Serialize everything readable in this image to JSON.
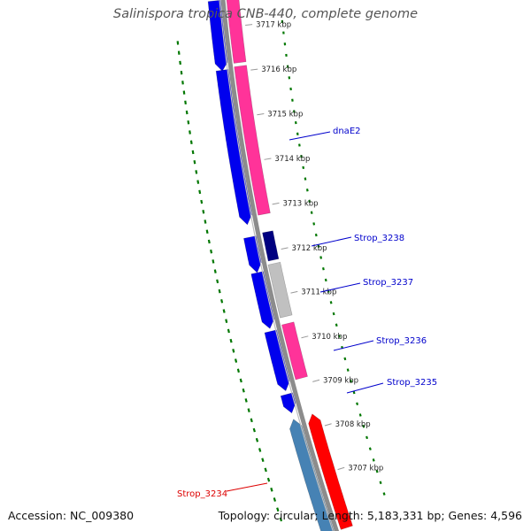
{
  "title": "Salinispora tropica CNB-440, complete genome",
  "footer": {
    "accession": "Accession: NC_009380",
    "summary": "Topology: circular; Length: 5,183,331 bp; Genes: 4,596"
  },
  "ticks": [
    {
      "kbp": 3717,
      "label": "3717 kbp"
    },
    {
      "kbp": 3716,
      "label": "3716 kbp"
    },
    {
      "kbp": 3715,
      "label": "3715 kbp"
    },
    {
      "kbp": 3714,
      "label": "3714 kbp"
    },
    {
      "kbp": 3713,
      "label": "3713 kbp"
    },
    {
      "kbp": 3712,
      "label": "3712 kbp"
    },
    {
      "kbp": 3711,
      "label": "3711 kbp"
    },
    {
      "kbp": 3710,
      "label": "3710 kbp"
    },
    {
      "kbp": 3709,
      "label": "3709 kbp"
    },
    {
      "kbp": 3708,
      "label": "3708 kbp"
    },
    {
      "kbp": 3707,
      "label": "3707 kbp"
    }
  ],
  "gene_labels": [
    {
      "id": "dnaE2",
      "text": "dnaE2",
      "color": "#0000cc"
    },
    {
      "id": "Strop_3238",
      "text": "Strop_3238",
      "color": "#0000cc"
    },
    {
      "id": "Strop_3237",
      "text": "Strop_3237",
      "color": "#0000cc"
    },
    {
      "id": "Strop_3236",
      "text": "Strop_3236",
      "color": "#0000cc"
    },
    {
      "id": "Strop_3235",
      "text": "Strop_3235",
      "color": "#0000cc"
    },
    {
      "id": "Strop_3234",
      "text": "Strop_3234",
      "color": "#dd0000"
    }
  ],
  "colors": {
    "backbone": "#8c8c8c",
    "cds_forward": "#0000ee",
    "cds_reverse": "#ff3399",
    "cds_dark": "#000080",
    "cds_grey": "#c0c0c0",
    "rna_steel": "#4682b4",
    "rna_red": "#ff0000",
    "gc_dash": "#007700"
  }
}
